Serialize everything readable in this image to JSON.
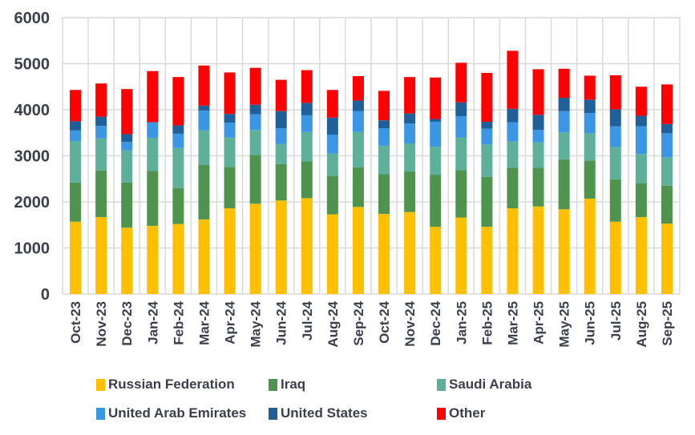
{
  "chart_data": {
    "type": "bar",
    "stacked": true,
    "title": "",
    "xlabel": "",
    "ylabel": "",
    "ylim": [
      0,
      6000
    ],
    "yticks": [
      0,
      1000,
      2000,
      3000,
      4000,
      5000,
      6000
    ],
    "grid": true,
    "legend_position": "bottom",
    "categories": [
      "Oct-23",
      "Nov-23",
      "Dec-23",
      "Jan-24",
      "Feb-24",
      "Mar-24",
      "Apr-24",
      "May-24",
      "Jun-24",
      "Jul-24",
      "Aug-24",
      "Sep-24",
      "Oct-24",
      "Nov-24",
      "Dec-24",
      "Jan-25",
      "Feb-25",
      "Mar-25",
      "Apr-25",
      "May-25",
      "Jun-25",
      "Jul-25",
      "Aug-25",
      "Sep-25"
    ],
    "series": [
      {
        "name": "Russian Federation",
        "color": "#ffc000",
        "values": [
          1570,
          1670,
          1440,
          1480,
          1520,
          1620,
          1860,
          1960,
          2030,
          2080,
          1730,
          1890,
          1740,
          1780,
          1460,
          1660,
          1460,
          1860,
          1900,
          1840,
          2070,
          1570,
          1670,
          1530
        ]
      },
      {
        "name": "Iraq",
        "color": "#4e944f",
        "values": [
          850,
          1010,
          980,
          1190,
          780,
          1180,
          900,
          1060,
          790,
          800,
          840,
          860,
          860,
          880,
          1130,
          1030,
          1080,
          880,
          840,
          1080,
          830,
          920,
          730,
          820
        ]
      },
      {
        "name": "Saudi Arabia",
        "color": "#5fb09b",
        "values": [
          900,
          700,
          700,
          720,
          870,
          750,
          640,
          540,
          440,
          640,
          480,
          770,
          620,
          610,
          610,
          710,
          710,
          570,
          550,
          590,
          590,
          700,
          640,
          620
        ]
      },
      {
        "name": "United Arab Emirates",
        "color": "#3b97e3",
        "values": [
          230,
          270,
          180,
          340,
          310,
          430,
          320,
          340,
          340,
          360,
          410,
          450,
          380,
          430,
          540,
          460,
          340,
          420,
          270,
          460,
          440,
          450,
          600,
          520
        ]
      },
      {
        "name": "United States",
        "color": "#1f5f9a",
        "values": [
          200,
          200,
          170,
          0,
          180,
          110,
          190,
          210,
          370,
          270,
          370,
          230,
          170,
          220,
          60,
          300,
          150,
          290,
          330,
          290,
          290,
          370,
          230,
          200
        ]
      },
      {
        "name": "Other",
        "color": "#ff0000",
        "values": [
          680,
          720,
          980,
          1110,
          1050,
          870,
          900,
          800,
          680,
          710,
          600,
          530,
          640,
          790,
          900,
          860,
          1060,
          1260,
          990,
          630,
          520,
          740,
          630,
          860
        ]
      }
    ]
  },
  "legend": {
    "items": [
      {
        "label": "Russian Federation",
        "color": "#ffc000"
      },
      {
        "label": "Iraq",
        "color": "#4e944f"
      },
      {
        "label": "Saudi Arabia",
        "color": "#5fb09b"
      },
      {
        "label": "United Arab Emirates",
        "color": "#3b97e3"
      },
      {
        "label": "United States",
        "color": "#1f5f9a"
      },
      {
        "label": "Other",
        "color": "#ff0000"
      }
    ]
  }
}
